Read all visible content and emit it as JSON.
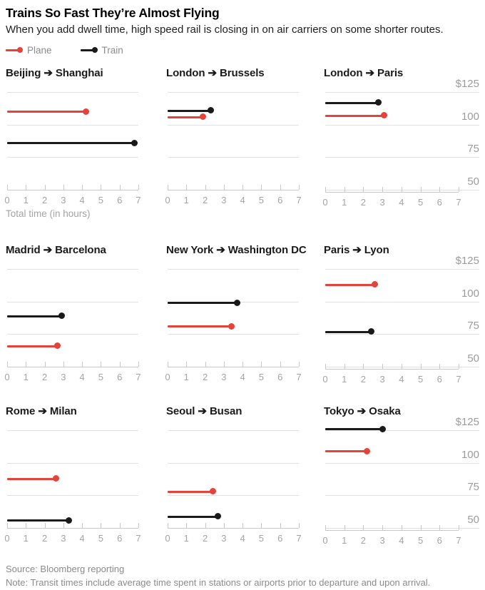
{
  "header": {
    "title": "Trains So Fast They’re Almost Flying",
    "subtitle": "When you add dwell time, high speed rail is closing in on air carriers on some shorter routes."
  },
  "legend": [
    {
      "label": "Plane",
      "color": "#e5423a"
    },
    {
      "label": "Train",
      "color": "#1a1a1a"
    }
  ],
  "colors": {
    "plane": "#e5423a",
    "train": "#1a1a1a",
    "gridline": "#e0e0e0",
    "axis": "#c8c8c8",
    "tick_label": "#a3a3a3",
    "price_label": "#9b9b9b",
    "muted_text": "#8a8a8a"
  },
  "chart_data": {
    "type": "lollipop",
    "layout": "small-multiples 3x3, legend top-left, price axis labels on right column only, grid on",
    "x_axis": {
      "label": "Total time (in hours)",
      "ticks": [
        0,
        1,
        2,
        3,
        4,
        5,
        6,
        7
      ],
      "min": 0,
      "max": 7,
      "unit": "hours"
    },
    "y_axis": {
      "labels": [
        "$125",
        "100",
        "75",
        "50"
      ],
      "values": [
        125,
        100,
        75,
        50
      ],
      "min": 50,
      "max": 125,
      "unit": "USD"
    },
    "series_keys": [
      "plane",
      "train"
    ],
    "panels": [
      {
        "route": "Beijing ➔ Shanghai",
        "plane": {
          "hours": 4.2,
          "price": 110
        },
        "train": {
          "hours": 6.8,
          "price": 86
        }
      },
      {
        "route": "London ➔ Brussels",
        "plane": {
          "hours": 1.9,
          "price": 106
        },
        "train": {
          "hours": 2.3,
          "price": 111
        }
      },
      {
        "route": "London ➔ Paris",
        "plane": {
          "hours": 3.1,
          "price": 107
        },
        "train": {
          "hours": 2.8,
          "price": 117
        }
      },
      {
        "route": "Madrid ➔ Barcelona",
        "plane": {
          "hours": 2.7,
          "price": 66
        },
        "train": {
          "hours": 2.9,
          "price": 89
        }
      },
      {
        "route": "New York ➔ Washington DC",
        "plane": {
          "hours": 3.4,
          "price": 81
        },
        "train": {
          "hours": 3.7,
          "price": 99
        }
      },
      {
        "route": "Paris ➔ Lyon",
        "plane": {
          "hours": 2.6,
          "price": 113
        },
        "train": {
          "hours": 2.4,
          "price": 77
        }
      },
      {
        "route": "Rome ➔ Milan",
        "plane": {
          "hours": 2.6,
          "price": 88
        },
        "train": {
          "hours": 3.3,
          "price": 56
        }
      },
      {
        "route": "Seoul ➔ Busan",
        "plane": {
          "hours": 2.4,
          "price": 78
        },
        "train": {
          "hours": 2.7,
          "price": 59
        }
      },
      {
        "route": "Tokyo ➔ Osaka",
        "plane": {
          "hours": 2.2,
          "price": 109
        },
        "train": {
          "hours": 3.0,
          "price": 126
        }
      }
    ]
  },
  "footer": {
    "source": "Source: Bloomberg reporting",
    "note": "Note: Transit times include average time spent in stations or airports prior to departure and upon arrival."
  }
}
